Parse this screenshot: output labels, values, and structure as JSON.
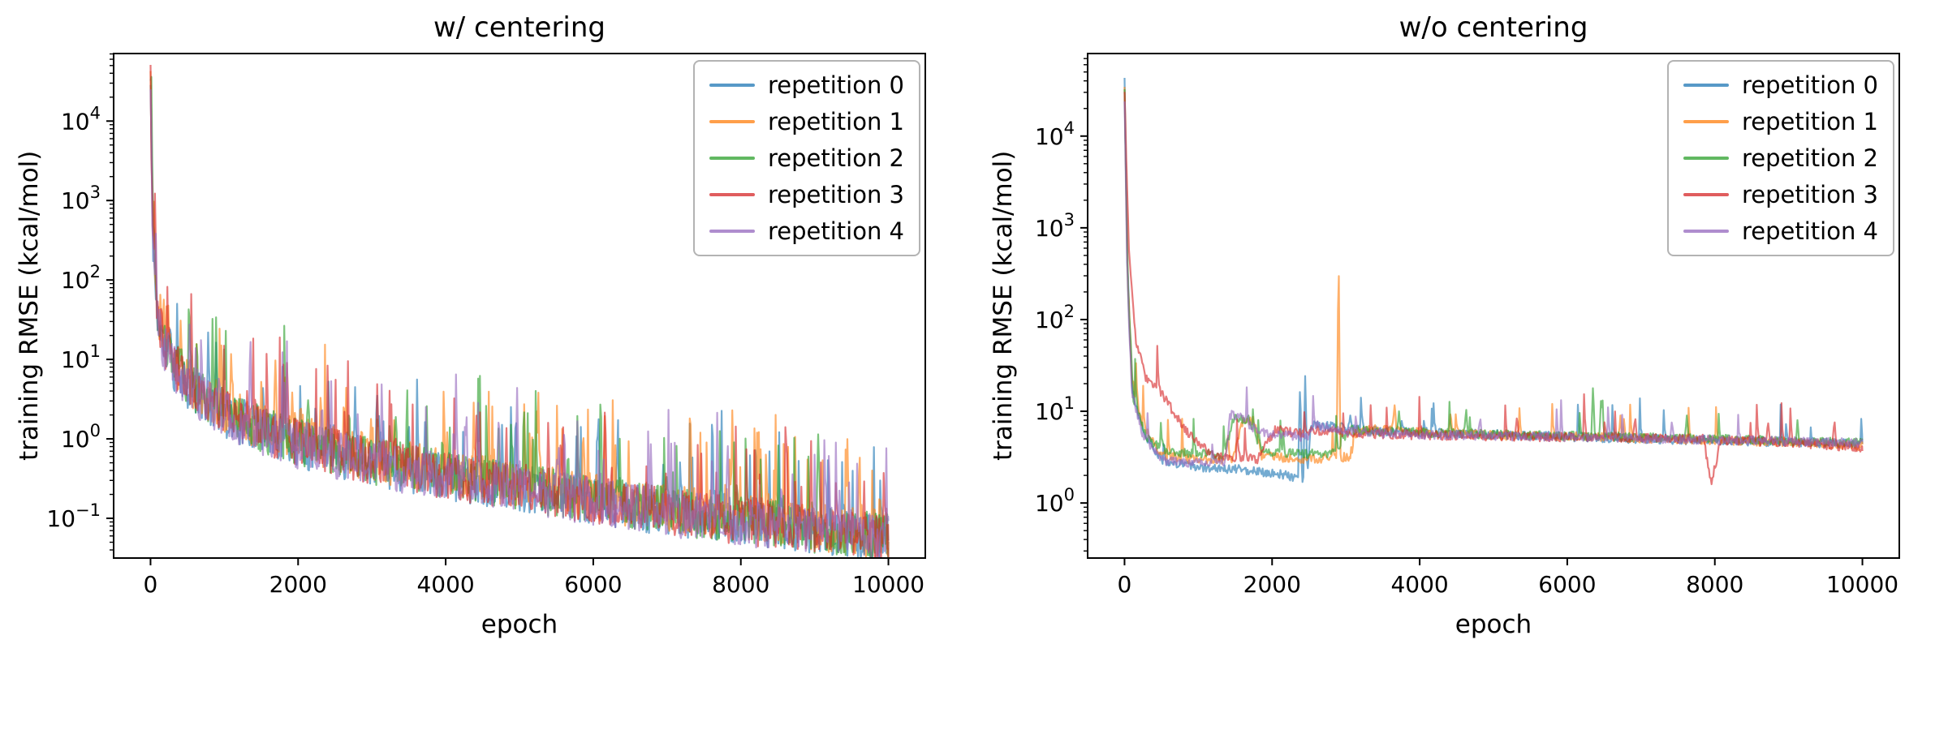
{
  "figure": {
    "background": "#ffffff"
  },
  "chart_data": [
    {
      "type": "line",
      "title": "w/ centering",
      "xlabel": "epoch",
      "ylabel": "training RMSE (kcal/mol)",
      "x_axis": "linear",
      "y_axis": "log",
      "xlim": [
        -500,
        10500
      ],
      "xticks": [
        0,
        2000,
        4000,
        6000,
        8000,
        10000
      ],
      "ylog_lim": [
        -1.5,
        4.85
      ],
      "yticks_exponents": [
        -1,
        0,
        1,
        2,
        3,
        4
      ],
      "grid": false,
      "legend_position": "upper right",
      "series": [
        {
          "name": "repetition 0",
          "color": "#1f77b4",
          "seed": 11,
          "noise": 0.3,
          "burst_prob": 0.055,
          "burst_amp": 1.15,
          "anchors": [
            [
              0,
              28000
            ],
            [
              30,
              400
            ],
            [
              80,
              45
            ],
            [
              150,
              18
            ],
            [
              300,
              8
            ],
            [
              600,
              3.8
            ],
            [
              1000,
              2.1
            ],
            [
              1500,
              1.25
            ],
            [
              2000,
              0.85
            ],
            [
              2500,
              0.65
            ],
            [
              3000,
              0.5
            ],
            [
              4000,
              0.34
            ],
            [
              5000,
              0.24
            ],
            [
              6000,
              0.165
            ],
            [
              7000,
              0.12
            ],
            [
              8000,
              0.09
            ],
            [
              9000,
              0.07
            ],
            [
              10000,
              0.055
            ]
          ],
          "spikes": [
            [
              3500,
              1.8
            ],
            [
              4950,
              2.5
            ],
            [
              6070,
              2.2
            ],
            [
              8200,
              1.2
            ]
          ]
        },
        {
          "name": "repetition 1",
          "color": "#ff7f0e",
          "seed": 22,
          "noise": 0.3,
          "burst_prob": 0.055,
          "burst_amp": 1.15,
          "anchors": [
            [
              0,
              36000
            ],
            [
              30,
              520
            ],
            [
              80,
              52
            ],
            [
              150,
              21
            ],
            [
              300,
              9.5
            ],
            [
              600,
              4.3
            ],
            [
              1000,
              2.4
            ],
            [
              1500,
              1.45
            ],
            [
              2000,
              1.0
            ],
            [
              2500,
              0.75
            ],
            [
              3000,
              0.57
            ],
            [
              4000,
              0.38
            ],
            [
              5000,
              0.27
            ],
            [
              6000,
              0.18
            ],
            [
              7000,
              0.135
            ],
            [
              8000,
              0.1
            ],
            [
              9000,
              0.078
            ],
            [
              10000,
              0.06
            ]
          ],
          "spikes": [
            [
              1690,
              11
            ],
            [
              1820,
              8
            ],
            [
              2620,
              3.2
            ],
            [
              5230,
              2.1
            ],
            [
              7320,
              1.5
            ]
          ]
        },
        {
          "name": "repetition 2",
          "color": "#2ca02c",
          "seed": 33,
          "noise": 0.3,
          "burst_prob": 0.055,
          "burst_amp": 1.15,
          "anchors": [
            [
              0,
              30000
            ],
            [
              30,
              450
            ],
            [
              80,
              48
            ],
            [
              150,
              19
            ],
            [
              300,
              8.8
            ],
            [
              600,
              4.0
            ],
            [
              1000,
              2.2
            ],
            [
              1500,
              1.35
            ],
            [
              2000,
              0.92
            ],
            [
              2500,
              0.7
            ],
            [
              3000,
              0.53
            ],
            [
              4000,
              0.36
            ],
            [
              5000,
              0.25
            ],
            [
              6000,
              0.17
            ],
            [
              7000,
              0.125
            ],
            [
              8000,
              0.095
            ],
            [
              9000,
              0.073
            ],
            [
              10000,
              0.057
            ]
          ],
          "spikes": [
            [
              2140,
              3.6
            ],
            [
              3320,
              2.6
            ],
            [
              5060,
              3.1
            ],
            [
              6100,
              3.0
            ],
            [
              9050,
              1.4
            ]
          ]
        },
        {
          "name": "repetition 3",
          "color": "#d62728",
          "seed": 44,
          "noise": 0.3,
          "burst_prob": 0.055,
          "burst_amp": 1.15,
          "anchors": [
            [
              0,
              32000
            ],
            [
              30,
              480
            ],
            [
              80,
              50
            ],
            [
              150,
              20
            ],
            [
              300,
              9
            ],
            [
              600,
              4.1
            ],
            [
              1000,
              2.25
            ],
            [
              1500,
              1.3
            ],
            [
              2000,
              0.9
            ],
            [
              2500,
              0.68
            ],
            [
              3000,
              0.52
            ],
            [
              4000,
              0.35
            ],
            [
              5000,
              0.245
            ],
            [
              6000,
              0.168
            ],
            [
              7000,
              0.122
            ],
            [
              8000,
              0.092
            ],
            [
              9000,
              0.071
            ],
            [
              10000,
              0.056
            ]
          ],
          "spikes": [
            [
              1310,
              4.2
            ],
            [
              4420,
              2.6
            ],
            [
              6160,
              4.0
            ],
            [
              8620,
              1.3
            ]
          ]
        },
        {
          "name": "repetition 4",
          "color": "#9467bd",
          "seed": 55,
          "noise": 0.3,
          "burst_prob": 0.055,
          "burst_amp": 1.15,
          "anchors": [
            [
              0,
              27000
            ],
            [
              30,
              380
            ],
            [
              80,
              44
            ],
            [
              150,
              17.5
            ],
            [
              300,
              7.8
            ],
            [
              600,
              3.7
            ],
            [
              1000,
              2.05
            ],
            [
              1500,
              1.2
            ],
            [
              2000,
              0.83
            ],
            [
              2500,
              0.63
            ],
            [
              3000,
              0.49
            ],
            [
              4000,
              0.33
            ],
            [
              5000,
              0.235
            ],
            [
              6000,
              0.16
            ],
            [
              7000,
              0.118
            ],
            [
              8000,
              0.088
            ],
            [
              9000,
              0.068
            ],
            [
              10000,
              0.054
            ]
          ],
          "spikes": [
            [
              920,
              6.2
            ],
            [
              2320,
              3.1
            ],
            [
              4720,
              2.1
            ],
            [
              7820,
              1.2
            ]
          ]
        }
      ]
    },
    {
      "type": "line",
      "title": "w/o centering",
      "xlabel": "epoch",
      "ylabel": "training RMSE (kcal/mol)",
      "x_axis": "linear",
      "y_axis": "log",
      "xlim": [
        -500,
        10500
      ],
      "xticks": [
        0,
        2000,
        4000,
        6000,
        8000,
        10000
      ],
      "ylog_lim": [
        -0.6,
        4.9
      ],
      "yticks_exponents": [
        0,
        1,
        2,
        3,
        4
      ],
      "grid": false,
      "legend_position": "upper right",
      "series": [
        {
          "name": "repetition 0",
          "color": "#1f77b4",
          "seed": 66,
          "noise": 0.05,
          "burst_prob": 0.018,
          "burst_amp": 0.45,
          "anchors": [
            [
              0,
              28000
            ],
            [
              40,
              300
            ],
            [
              100,
              18
            ],
            [
              250,
              6
            ],
            [
              500,
              3.0
            ],
            [
              900,
              2.5
            ],
            [
              1600,
              2.3
            ],
            [
              2200,
              2.0
            ],
            [
              2400,
              1.85
            ],
            [
              2480,
              2.2
            ],
            [
              2520,
              7.0
            ],
            [
              2700,
              6.9
            ],
            [
              3500,
              6.1
            ],
            [
              5000,
              5.6
            ],
            [
              7000,
              5.0
            ],
            [
              9000,
              4.6
            ],
            [
              10000,
              4.4
            ]
          ],
          "spikes": [
            [
              2380,
              24
            ],
            [
              2450,
              30
            ],
            [
              3060,
              9
            ]
          ]
        },
        {
          "name": "repetition 1",
          "color": "#ff7f0e",
          "seed": 77,
          "noise": 0.05,
          "burst_prob": 0.018,
          "burst_amp": 0.45,
          "anchors": [
            [
              0,
              35000
            ],
            [
              40,
              350
            ],
            [
              100,
              22
            ],
            [
              250,
              7
            ],
            [
              500,
              3.4
            ],
            [
              900,
              3.0
            ],
            [
              1450,
              2.9
            ],
            [
              1600,
              7.6
            ],
            [
              1750,
              7.9
            ],
            [
              1860,
              3.3
            ],
            [
              2300,
              3.0
            ],
            [
              2850,
              3.1
            ],
            [
              3050,
              3.2
            ],
            [
              3150,
              5.9
            ],
            [
              3400,
              6.3
            ],
            [
              5000,
              5.5
            ],
            [
              7000,
              5.1
            ],
            [
              9000,
              4.6
            ],
            [
              10000,
              4.2
            ]
          ],
          "spikes": [
            [
              1400,
              6.2
            ],
            [
              2900,
              700
            ],
            [
              3650,
              9.5
            ],
            [
              4420,
              10
            ],
            [
              6720,
              9
            ]
          ]
        },
        {
          "name": "repetition 2",
          "color": "#2ca02c",
          "seed": 88,
          "noise": 0.05,
          "burst_prob": 0.018,
          "burst_amp": 0.45,
          "anchors": [
            [
              0,
              30000
            ],
            [
              50,
              200
            ],
            [
              120,
              14
            ],
            [
              300,
              5
            ],
            [
              600,
              3.6
            ],
            [
              1350,
              3.3
            ],
            [
              1480,
              8.6
            ],
            [
              1700,
              8.0
            ],
            [
              1850,
              3.7
            ],
            [
              2400,
              3.4
            ],
            [
              2850,
              3.5
            ],
            [
              3050,
              6.3
            ],
            [
              3500,
              6.0
            ],
            [
              5000,
              5.6
            ],
            [
              6500,
              5.3
            ],
            [
              8000,
              5.0
            ],
            [
              10000,
              4.5
            ]
          ],
          "spikes": [
            [
              3720,
              10
            ],
            [
              4630,
              11
            ],
            [
              6350,
              20
            ],
            [
              6460,
              15
            ],
            [
              7620,
              9
            ],
            [
              9120,
              8
            ]
          ]
        },
        {
          "name": "repetition 3",
          "color": "#d62728",
          "seed": 99,
          "noise": 0.05,
          "burst_prob": 0.018,
          "burst_amp": 0.45,
          "anchors": [
            [
              0,
              32000
            ],
            [
              60,
              600
            ],
            [
              150,
              60
            ],
            [
              300,
              22
            ],
            [
              500,
              16
            ],
            [
              800,
              6.5
            ],
            [
              1200,
              3.3
            ],
            [
              1800,
              3.0
            ],
            [
              2050,
              6.4
            ],
            [
              2350,
              5.7
            ],
            [
              2600,
              6.2
            ],
            [
              3000,
              5.8
            ],
            [
              4000,
              5.5
            ],
            [
              6000,
              5.2
            ],
            [
              7850,
              5.0
            ],
            [
              7950,
              1.6
            ],
            [
              8080,
              4.8
            ],
            [
              9000,
              4.6
            ],
            [
              10000,
              4.0
            ]
          ],
          "spikes": [
            [
              5320,
              9
            ],
            [
              6920,
              9
            ],
            [
              8720,
              8
            ],
            [
              9620,
              8.5
            ]
          ]
        },
        {
          "name": "repetition 4",
          "color": "#9467bd",
          "seed": 110,
          "noise": 0.05,
          "burst_prob": 0.018,
          "burst_amp": 0.45,
          "anchors": [
            [
              0,
              26000
            ],
            [
              40,
              250
            ],
            [
              100,
              16
            ],
            [
              250,
              5.5
            ],
            [
              500,
              2.9
            ],
            [
              1000,
              2.7
            ],
            [
              1360,
              2.7
            ],
            [
              1430,
              9.2
            ],
            [
              1600,
              8.4
            ],
            [
              1800,
              6.1
            ],
            [
              2100,
              5.6
            ],
            [
              2480,
              5.1
            ],
            [
              2560,
              7.1
            ],
            [
              3000,
              6.0
            ],
            [
              4000,
              5.6
            ],
            [
              6000,
              5.2
            ],
            [
              8000,
              4.9
            ],
            [
              10000,
              4.5
            ]
          ],
          "spikes": [
            [
              4820,
              9
            ],
            [
              7420,
              8
            ]
          ]
        }
      ]
    }
  ]
}
